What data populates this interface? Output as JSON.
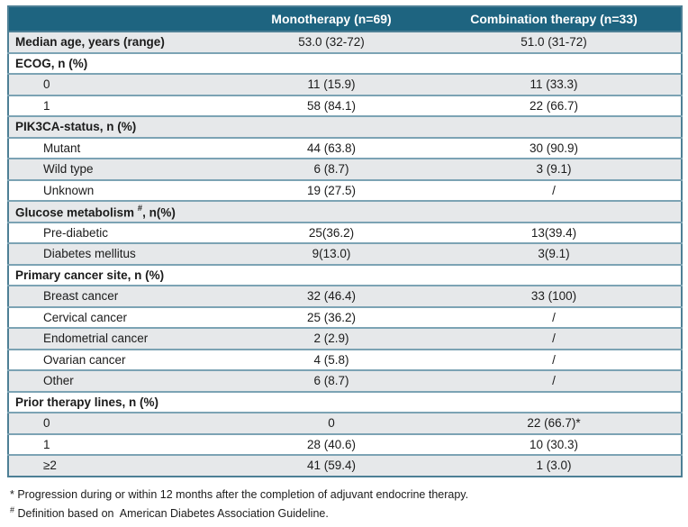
{
  "colors": {
    "header_bg": "#1e6480",
    "header_text": "#ffffff",
    "row_alt_bg": "#e6e8ea",
    "row_bg": "#ffffff",
    "row_border": "#7ca3b4",
    "outer_border": "#4d7f95",
    "text": "#1b1b1b"
  },
  "table": {
    "columns": [
      "",
      "Monotherapy (n=69)",
      "Combination therapy (n=33)"
    ],
    "rows": [
      {
        "type": "data",
        "label": "Median age, years (range)",
        "bold": true,
        "indent": false,
        "monotherapy": "53.0 (32-72)",
        "combination": "51.0 (31-72)"
      },
      {
        "type": "section",
        "label": "ECOG, n (%)"
      },
      {
        "type": "data",
        "label": "0",
        "bold": false,
        "indent": true,
        "monotherapy": "11 (15.9)",
        "combination": "11 (33.3)"
      },
      {
        "type": "data",
        "label": "1",
        "bold": false,
        "indent": true,
        "monotherapy": "58 (84.1)",
        "combination": "22 (66.7)"
      },
      {
        "type": "section",
        "label": "PIK3CA-status, n (%)"
      },
      {
        "type": "data",
        "label": "Mutant",
        "bold": false,
        "indent": true,
        "monotherapy": "44 (63.8)",
        "combination": "30 (90.9)"
      },
      {
        "type": "data",
        "label": "Wild type",
        "bold": false,
        "indent": true,
        "monotherapy": "6 (8.7)",
        "combination": "3 (9.1)"
      },
      {
        "type": "data",
        "label": "Unknown",
        "bold": false,
        "indent": true,
        "monotherapy": "19 (27.5)",
        "combination": "/"
      },
      {
        "type": "section",
        "label": "Glucose metabolism ",
        "label_sup": "#",
        "label_suffix": ", n(%)"
      },
      {
        "type": "data",
        "label": "Pre-diabetic",
        "bold": false,
        "indent": true,
        "monotherapy": "25(36.2)",
        "combination": "13(39.4)"
      },
      {
        "type": "data",
        "label": "Diabetes mellitus",
        "bold": false,
        "indent": true,
        "monotherapy": "9(13.0)",
        "combination": "3(9.1)"
      },
      {
        "type": "section",
        "label": "Primary cancer site, n (%)"
      },
      {
        "type": "data",
        "label": "Breast cancer",
        "bold": false,
        "indent": true,
        "monotherapy": "32 (46.4)",
        "combination": "33 (100)"
      },
      {
        "type": "data",
        "label": "Cervical cancer",
        "bold": false,
        "indent": true,
        "monotherapy": "25 (36.2)",
        "combination": "/"
      },
      {
        "type": "data",
        "label": "Endometrial cancer",
        "bold": false,
        "indent": true,
        "monotherapy": "2 (2.9)",
        "combination": "/"
      },
      {
        "type": "data",
        "label": "Ovarian cancer",
        "bold": false,
        "indent": true,
        "monotherapy": "4 (5.8)",
        "combination": "/"
      },
      {
        "type": "data",
        "label": "Other",
        "bold": false,
        "indent": true,
        "monotherapy": "6 (8.7)",
        "combination": "/"
      },
      {
        "type": "section",
        "label": "Prior therapy lines, n (%)"
      },
      {
        "type": "data",
        "label": "0",
        "bold": false,
        "indent": true,
        "monotherapy": "0",
        "combination": "22 (66.7)*"
      },
      {
        "type": "data",
        "label": "1",
        "bold": false,
        "indent": true,
        "monotherapy": "28 (40.6)",
        "combination": "10 (30.3)"
      },
      {
        "type": "data",
        "label": "≥2",
        "bold": false,
        "indent": true,
        "monotherapy": "41 (59.4)",
        "combination": "1 (3.0)"
      }
    ]
  },
  "footnotes": [
    {
      "marker": "*",
      "superscript_marker": false,
      "text": "Progression during or within 12 months after the completion of adjuvant endocrine therapy."
    },
    {
      "marker": "#",
      "superscript_marker": true,
      "text": "Definition based on  American Diabetes Association Guideline."
    }
  ]
}
